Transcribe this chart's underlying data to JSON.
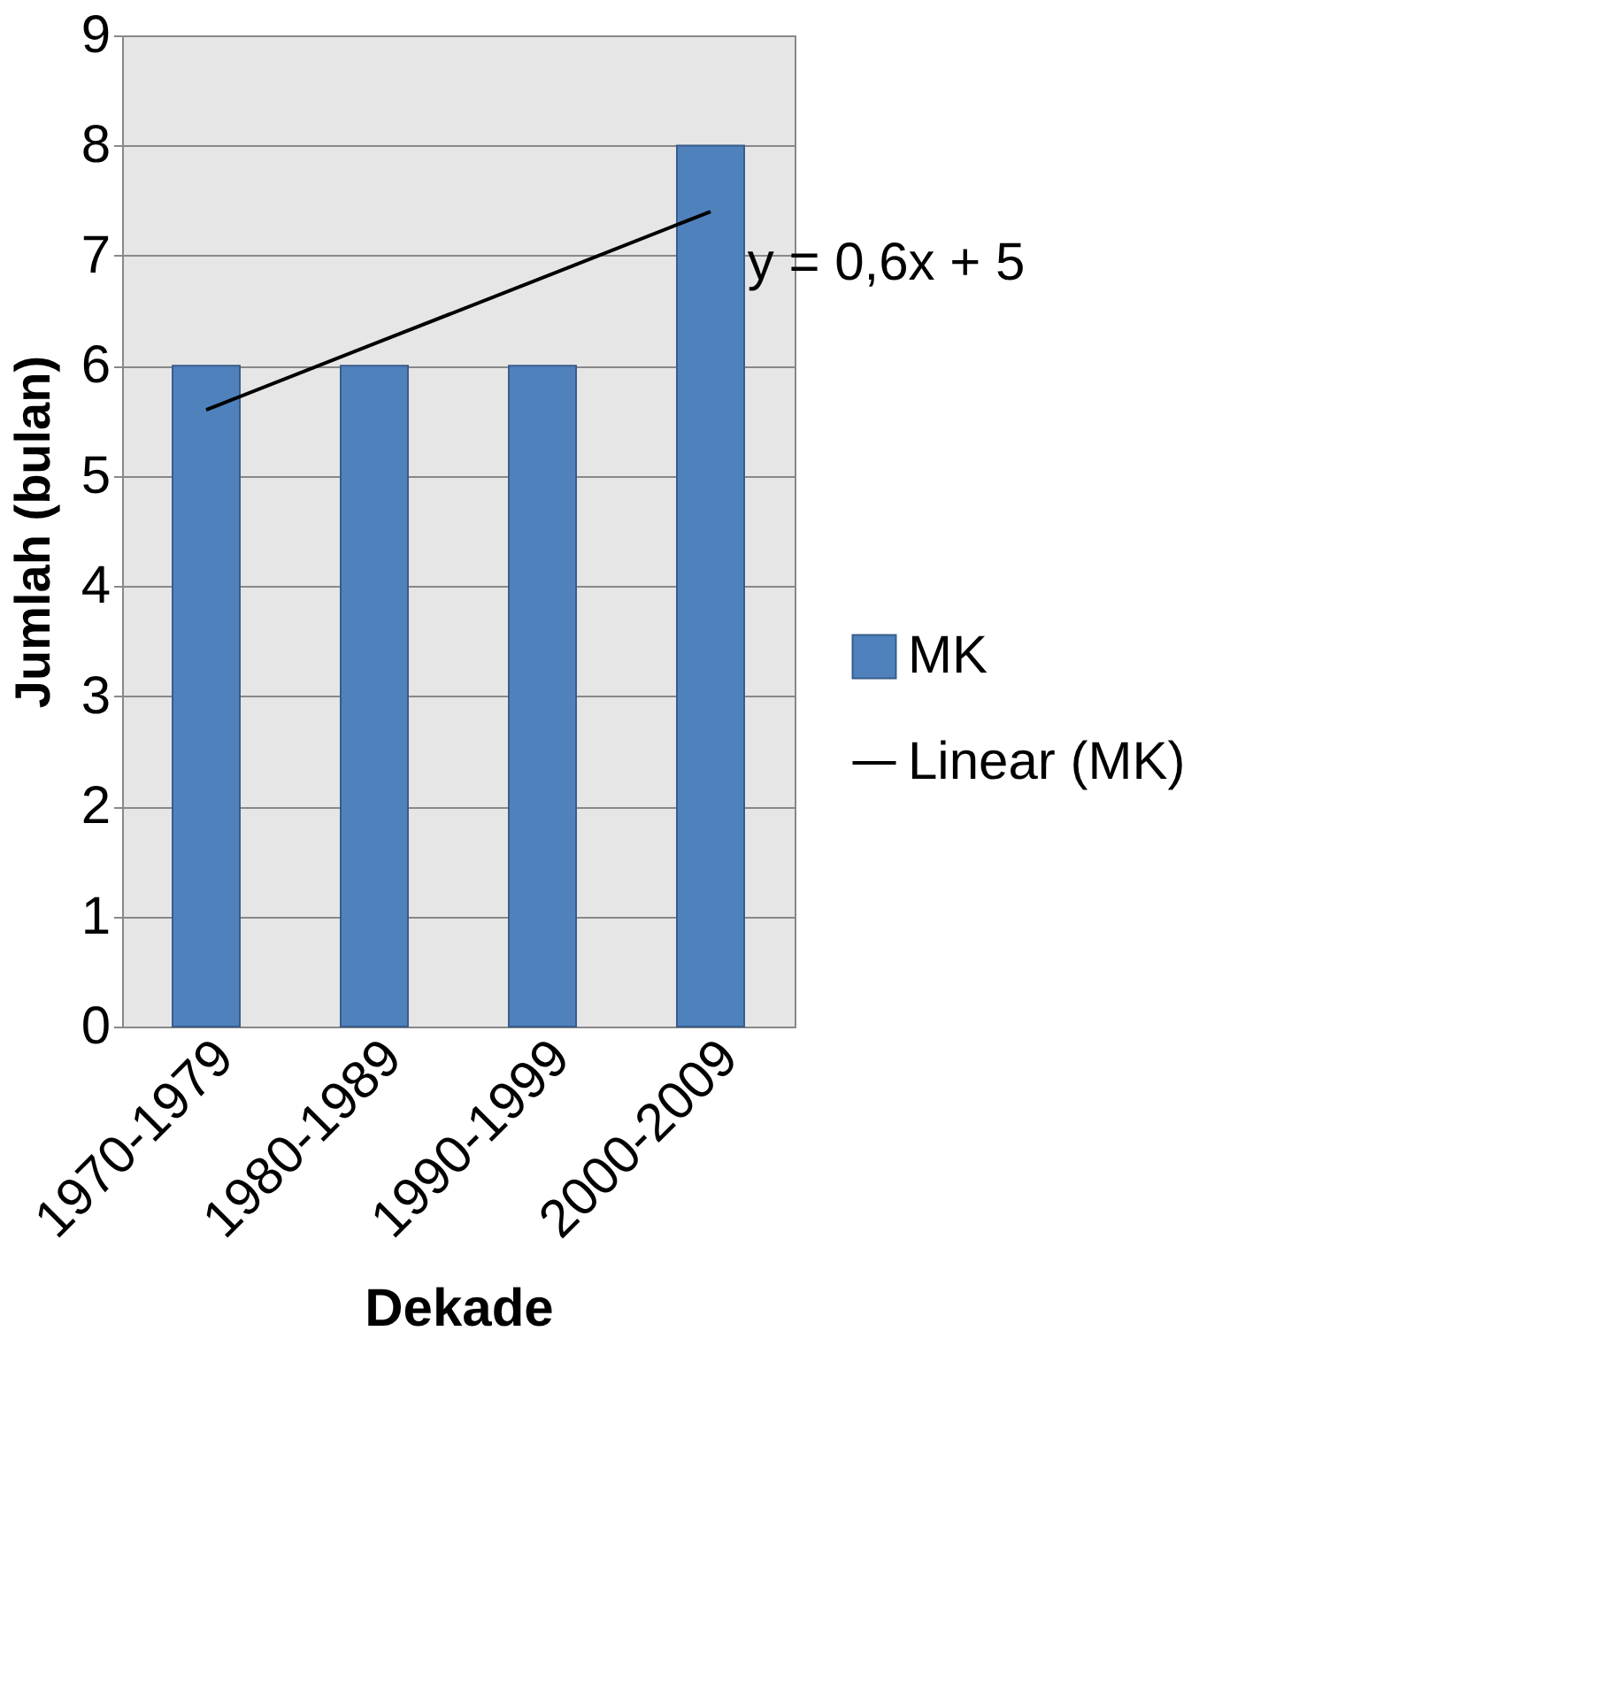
{
  "chart_data": {
    "type": "bar",
    "xlabel": "Dekade",
    "ylabel": "Jumlah (bulan)",
    "categories": [
      "1970-1979",
      "1980-1989",
      "1990-1999",
      "2000-2009"
    ],
    "series": [
      {
        "name": "MK",
        "color": "#4f81bd",
        "values": [
          6,
          6,
          6,
          8
        ]
      },
      {
        "name": "Linear (MK)",
        "type": "line",
        "color": "#000000",
        "x": [
          "1970-1979",
          "1980-1989",
          "1990-1999",
          "2000-2009"
        ],
        "values": [
          5.6,
          6.2,
          6.8,
          7.4
        ]
      }
    ],
    "annotations": [
      "y = 0,6x + 5"
    ],
    "ylim": [
      0,
      9
    ],
    "yticks": [
      0,
      1,
      2,
      3,
      4,
      5,
      6,
      7,
      8,
      9
    ],
    "grid": "y",
    "legend": "right"
  }
}
